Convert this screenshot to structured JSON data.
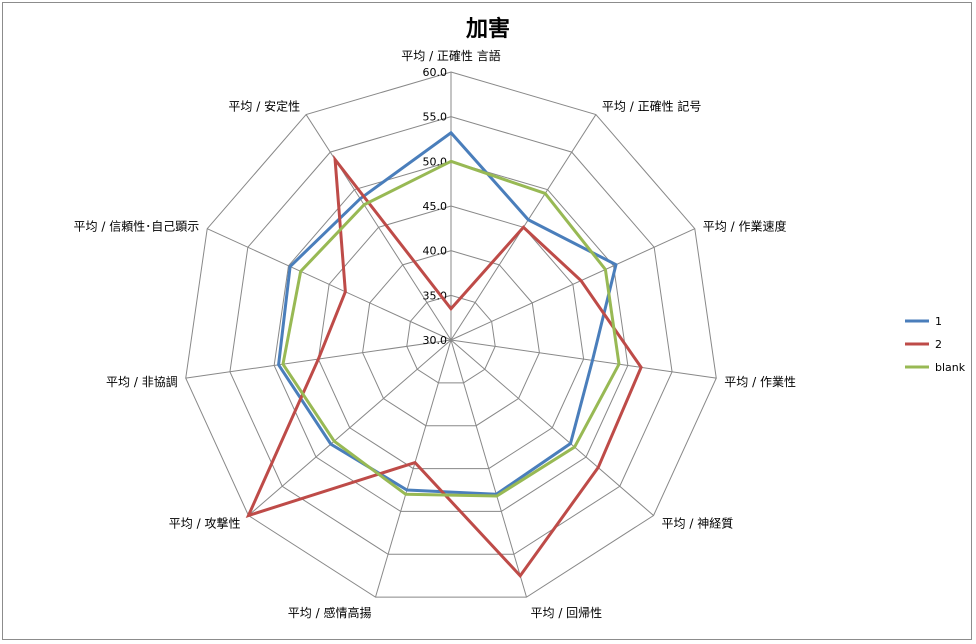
{
  "chart_data": {
    "type": "radar",
    "title": "加害",
    "categories": [
      "平均 / 正確性  言語",
      "平均 / 正確性  記号",
      "平均 / 作業速度",
      "平均 / 作業性",
      "平均 / 神経質",
      "平均 / 回帰性",
      "平均 / 感情高揚",
      "平均 / 攻撃性",
      "平均 / 非協調",
      "平均 / 信頼性･自己顕示",
      "平均 / 安定性"
    ],
    "rlim": [
      30,
      60
    ],
    "ticks": [
      30,
      35,
      40,
      45,
      50,
      55,
      60
    ],
    "tick_labels": [
      "30.0",
      "35.0",
      "40.0",
      "45.0",
      "50.0",
      "55.0",
      "60.0"
    ],
    "series": [
      {
        "name": "1",
        "color": "#4a7ebb",
        "values": [
          53.2,
          46.0,
          50.3,
          46.0,
          47.7,
          48.0,
          47.5,
          47.8,
          49.5,
          49.8,
          48.8
        ]
      },
      {
        "name": "2",
        "color": "#be4b48",
        "values": [
          33.5,
          45.0,
          46.0,
          51.5,
          51.8,
          57.5,
          44.3,
          60.0,
          45.0,
          43.0,
          54.0
        ]
      },
      {
        "name": "blank",
        "color": "#98b954",
        "values": [
          50.0,
          49.5,
          49.0,
          49.0,
          48.3,
          48.2,
          48.0,
          47.3,
          49.0,
          48.5,
          48.0
        ]
      }
    ],
    "grid": true,
    "legend": "right"
  }
}
